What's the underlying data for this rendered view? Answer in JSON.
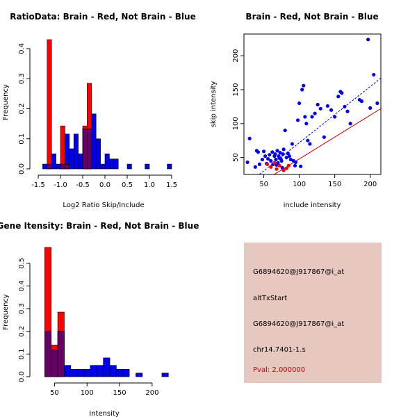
{
  "colors": {
    "red": "#ff0000",
    "blue": "#0000ee",
    "overlap": "#660066",
    "fit_blue": "#0000cc",
    "fit_red": "#cc0000",
    "panel": "#e6c8c0",
    "pval": "#c00000"
  },
  "chart_data": [
    {
      "id": "ratio",
      "type": "bar",
      "title": "RatioData: Brain - Red, Not Brain - Blue",
      "xlabel": "Log2 Ratio Skip/Include",
      "ylabel": "Frequency",
      "xlim": [
        -1.5,
        1.5
      ],
      "ylim": [
        0,
        0.45
      ],
      "xticks": [
        -1.5,
        -1.0,
        -0.5,
        0.0,
        0.5,
        1.0,
        1.5
      ],
      "xtick_labels": [
        "-1.5",
        "-1.0",
        "-0.5",
        "0.0",
        "0.5",
        "1.0",
        "1.5"
      ],
      "yticks": [
        0,
        0.1,
        0.2,
        0.3,
        0.4
      ],
      "ytick_labels": [
        "0.0",
        "0.1",
        "0.2",
        "0.3",
        "0.4"
      ],
      "series": [
        {
          "name": "Brain",
          "color": "red",
          "bins": [
            [
              -1.3,
              -1.2,
              0.43
            ],
            [
              -1.0,
              -0.9,
              0.143
            ],
            [
              -0.9,
              -0.8,
              0.015
            ],
            [
              -0.5,
              -0.4,
              0.143
            ],
            [
              -0.4,
              -0.3,
              0.285
            ]
          ]
        },
        {
          "name": "Not Brain",
          "color": "blue",
          "bins": [
            [
              -1.4,
              -1.3,
              0.016
            ],
            [
              -1.3,
              -1.2,
              0.016
            ],
            [
              -1.2,
              -1.1,
              0.05
            ],
            [
              -1.1,
              -1.0,
              0.016
            ],
            [
              -1.0,
              -0.9,
              0.016
            ],
            [
              -0.9,
              -0.8,
              0.116
            ],
            [
              -0.8,
              -0.7,
              0.067
            ],
            [
              -0.7,
              -0.6,
              0.116
            ],
            [
              -0.6,
              -0.5,
              0.05
            ],
            [
              -0.5,
              -0.4,
              0.133
            ],
            [
              -0.4,
              -0.3,
              0.133
            ],
            [
              -0.3,
              -0.2,
              0.183
            ],
            [
              -0.2,
              -0.1,
              0.1
            ],
            [
              -0.1,
              0.0,
              0.016
            ],
            [
              0.0,
              0.1,
              0.05
            ],
            [
              0.1,
              0.2,
              0.033
            ],
            [
              0.2,
              0.3,
              0.033
            ],
            [
              0.5,
              0.6,
              0.016
            ],
            [
              0.9,
              1.0,
              0.016
            ],
            [
              1.4,
              1.5,
              0.016
            ]
          ]
        }
      ]
    },
    {
      "id": "scatter",
      "type": "scatter",
      "title": "Brain - Red, Not Brain - Blue",
      "xlabel": "include intensity",
      "ylabel": "skip intensity",
      "xlim": [
        22,
        215
      ],
      "ylim": [
        25,
        232
      ],
      "xticks": [
        50,
        100,
        150,
        200
      ],
      "xtick_labels": [
        "50",
        "100",
        "150",
        "200"
      ],
      "yticks": [
        50,
        100,
        150,
        200
      ],
      "ytick_labels": [
        "50",
        "100",
        "150",
        "200"
      ],
      "series": [
        {
          "name": "Not Brain",
          "color": "blue",
          "points": [
            [
              27,
              43
            ],
            [
              30,
              78
            ],
            [
              38,
              36
            ],
            [
              40,
              60
            ],
            [
              42,
              58
            ],
            [
              44,
              40
            ],
            [
              48,
              47
            ],
            [
              50,
              59
            ],
            [
              52,
              52
            ],
            [
              54,
              41
            ],
            [
              56,
              48
            ],
            [
              58,
              54
            ],
            [
              60,
              45
            ],
            [
              62,
              58
            ],
            [
              63,
              40
            ],
            [
              65,
              52
            ],
            [
              66,
              55
            ],
            [
              67,
              47
            ],
            [
              68,
              39
            ],
            [
              69,
              60
            ],
            [
              70,
              42
            ],
            [
              71,
              52
            ],
            [
              72,
              49
            ],
            [
              73,
              57
            ],
            [
              74,
              48
            ],
            [
              75,
              45
            ],
            [
              76,
              35
            ],
            [
              77,
              55
            ],
            [
              78,
              62
            ],
            [
              80,
              90
            ],
            [
              82,
              50
            ],
            [
              84,
              56
            ],
            [
              86,
              52
            ],
            [
              88,
              47
            ],
            [
              90,
              70
            ],
            [
              92,
              45
            ],
            [
              94,
              38
            ],
            [
              95,
              43
            ],
            [
              98,
              105
            ],
            [
              100,
              130
            ],
            [
              102,
              37
            ],
            [
              104,
              150
            ],
            [
              106,
              156
            ],
            [
              108,
              110
            ],
            [
              110,
              100
            ],
            [
              112,
              75
            ],
            [
              115,
              70
            ],
            [
              118,
              110
            ],
            [
              122,
              115
            ],
            [
              126,
              128
            ],
            [
              130,
              122
            ],
            [
              135,
              80
            ],
            [
              140,
              126
            ],
            [
              145,
              120
            ],
            [
              150,
              110
            ],
            [
              155,
              140
            ],
            [
              158,
              147
            ],
            [
              160,
              145
            ],
            [
              164,
              125
            ],
            [
              168,
              118
            ],
            [
              172,
              100
            ],
            [
              185,
              135
            ],
            [
              188,
              133
            ],
            [
              197,
              224
            ],
            [
              200,
              123
            ],
            [
              205,
              172
            ],
            [
              210,
              130
            ]
          ]
        },
        {
          "name": "Brain",
          "color": "red",
          "points": [
            [
              55,
              40
            ],
            [
              60,
              36
            ],
            [
              65,
              42
            ],
            [
              68,
              33
            ],
            [
              72,
              38
            ],
            [
              78,
              31
            ],
            [
              82,
              34
            ],
            [
              85,
              38
            ]
          ]
        }
      ],
      "fit_lines": [
        {
          "name": "Not Brain fit",
          "color": "fit_blue",
          "style": "dashed",
          "from": [
            40,
            22
          ],
          "to": [
            215,
            167
          ]
        },
        {
          "name": "Brain fit",
          "color": "fit_red",
          "style": "solid",
          "from": [
            60,
            22
          ],
          "to": [
            215,
            122
          ]
        }
      ]
    },
    {
      "id": "intensity",
      "type": "bar",
      "title": "Gene Itensity: Brain - Red, Not Brain - Blue",
      "xlabel": "Intensity",
      "ylabel": "Frequency",
      "xlim": [
        25,
        230
      ],
      "ylim": [
        0,
        0.6
      ],
      "xticks": [
        50,
        100,
        150,
        200
      ],
      "xtick_labels": [
        "50",
        "100",
        "150",
        "200"
      ],
      "yticks": [
        0,
        0.1,
        0.2,
        0.3,
        0.4,
        0.5
      ],
      "ytick_labels": [
        "0.0",
        "0.1",
        "0.2",
        "0.3",
        "0.4",
        "0.5"
      ],
      "series": [
        {
          "name": "Brain",
          "color": "red",
          "bins": [
            [
              35,
              45,
              0.57
            ],
            [
              45,
              55,
              0.14
            ],
            [
              55,
              65,
              0.285
            ]
          ]
        },
        {
          "name": "Not Brain",
          "color": "blue",
          "bins": [
            [
              35,
              45,
              0.2
            ],
            [
              45,
              55,
              0.117
            ],
            [
              55,
              65,
              0.2
            ],
            [
              65,
              75,
              0.05
            ],
            [
              75,
              85,
              0.033
            ],
            [
              85,
              95,
              0.033
            ],
            [
              95,
              105,
              0.033
            ],
            [
              105,
              115,
              0.05
            ],
            [
              115,
              125,
              0.05
            ],
            [
              125,
              135,
              0.083
            ],
            [
              135,
              145,
              0.05
            ],
            [
              145,
              155,
              0.033
            ],
            [
              155,
              165,
              0.033
            ],
            [
              175,
              185,
              0.016
            ],
            [
              215,
              225,
              0.016
            ]
          ]
        }
      ]
    }
  ],
  "info_panel": {
    "probe_id": "G6894620@J917867@i_at",
    "event_type": "altTxStart",
    "probe_id_2": "G6894620@J917867@i_at",
    "locus": "chr14.7401-1.s",
    "pval": "Pval: 2.000000"
  }
}
